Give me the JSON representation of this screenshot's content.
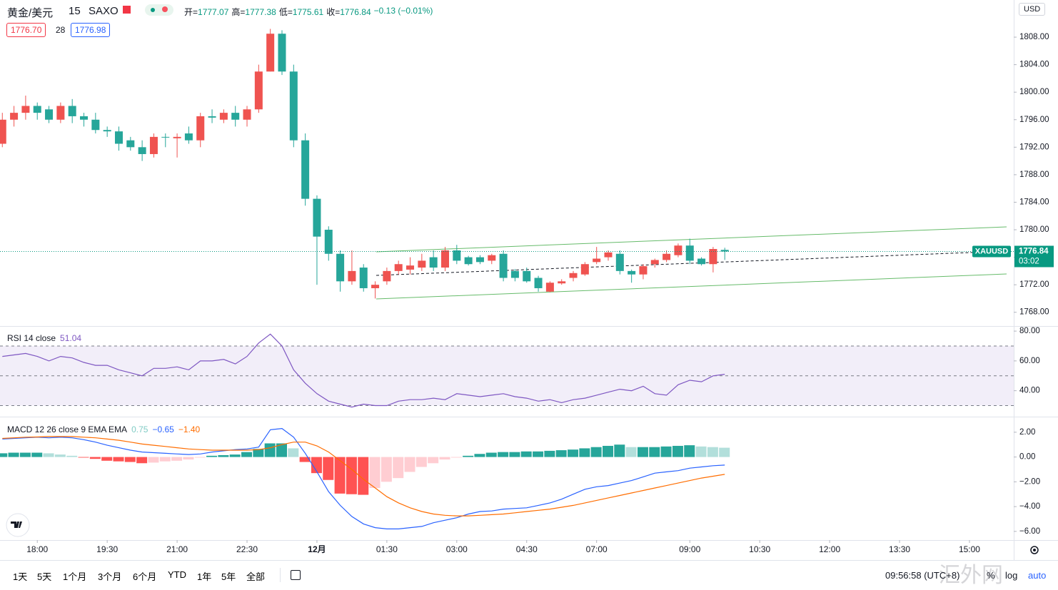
{
  "header": {
    "symbol": "黄金/美元",
    "interval": "15",
    "exchange": "SAXO",
    "ohlc": [
      {
        "label": "开=",
        "value": 1777.07
      },
      {
        "label": "高=",
        "value": 1777.38
      },
      {
        "label": "低=",
        "value": 1775.61
      },
      {
        "label": "收=",
        "value": 1776.84
      }
    ],
    "change": "−0.13 (−0.01%)",
    "bid": "1776.70",
    "spread": "28",
    "ask": "1776.98",
    "currency": "USD"
  },
  "chart_data": [
    {
      "type": "candlestick",
      "up_color": "#ef5350",
      "down_color": "#26a69a",
      "open": [
        1792.5,
        1796,
        1797,
        1798,
        1797.5,
        1796,
        1798,
        1796.5,
        1796,
        1794.5,
        1794.3,
        1793,
        1792,
        1791,
        1793.5,
        1793.3,
        1794,
        1793,
        1796.5,
        1796,
        1797,
        1796,
        1797.5,
        1803,
        1808.5,
        1803,
        1793,
        1784.5,
        1780,
        1776.5,
        1772.5,
        1774.5,
        1771.5,
        1772.5,
        1774,
        1774.2,
        1774.5,
        1776,
        1774.5,
        1777,
        1776,
        1776,
        1775.5,
        1776.5,
        1774,
        1774,
        1773,
        1771,
        1772.2,
        1773,
        1773.5,
        1775.3,
        1776,
        1776.5,
        1774,
        1773.5,
        1775,
        1775.6,
        1776.3,
        1777.7,
        1775.8,
        1775,
        1777.07
      ],
      "high": [
        1797,
        1798,
        1799.5,
        1798.5,
        1798,
        1798.5,
        1799,
        1797,
        1797,
        1795,
        1795,
        1793.5,
        1793,
        1794,
        1794,
        1794,
        1795,
        1797,
        1797.5,
        1797.5,
        1798,
        1798,
        1804,
        1809.2,
        1809,
        1804,
        1794,
        1785,
        1780.5,
        1777,
        1777,
        1775,
        1772.5,
        1774.5,
        1775.5,
        1776,
        1776.5,
        1777,
        1777.5,
        1777.8,
        1776.2,
        1776.3,
        1776.5,
        1777,
        1774.3,
        1774.5,
        1773.3,
        1772.5,
        1772.8,
        1774,
        1775.3,
        1777.5,
        1777,
        1777,
        1774.2,
        1775,
        1775.8,
        1777,
        1778,
        1778.7,
        1776,
        1777.5,
        1777.38
      ],
      "low": [
        1792,
        1795,
        1796,
        1796,
        1795.5,
        1795.5,
        1795.5,
        1795,
        1794,
        1793.5,
        1791.5,
        1791.5,
        1790,
        1790.5,
        1792,
        1790.5,
        1792.5,
        1792,
        1795.5,
        1795.5,
        1795,
        1795,
        1797,
        1803,
        1802.5,
        1792,
        1783.5,
        1772,
        1775.5,
        1771,
        1772,
        1771,
        1770,
        1772,
        1773.5,
        1773.5,
        1774,
        1774,
        1774,
        1775,
        1774.8,
        1775,
        1775,
        1772.5,
        1772.5,
        1772.3,
        1771,
        1770.9,
        1772,
        1772.5,
        1773.3,
        1775,
        1775.5,
        1773.5,
        1772.3,
        1772.8,
        1774.5,
        1775.3,
        1776,
        1775,
        1774.8,
        1773.8,
        1775.61
      ],
      "close": [
        1796,
        1797,
        1798,
        1797,
        1796,
        1798,
        1796.5,
        1796,
        1794.5,
        1794.3,
        1792.5,
        1792,
        1791,
        1793.5,
        1793.4,
        1793.5,
        1793,
        1796.5,
        1796.3,
        1797,
        1796,
        1797.5,
        1803,
        1808.5,
        1803,
        1793,
        1784.5,
        1779,
        1776.5,
        1772.5,
        1774,
        1771.5,
        1772,
        1774,
        1775,
        1774.8,
        1775.5,
        1774.5,
        1777,
        1775.5,
        1775,
        1775.3,
        1776.3,
        1773,
        1773,
        1772.5,
        1771.5,
        1772.3,
        1772.5,
        1773.7,
        1775,
        1775.8,
        1776.7,
        1774,
        1773.5,
        1774.7,
        1775.6,
        1776.5,
        1777.7,
        1775.5,
        1775,
        1777.2,
        1776.84
      ],
      "ylim": [
        1766.0,
        1813.4
      ],
      "yticks": [
        {
          "value": 1768,
          "label": "1768.00"
        },
        {
          "value": 1772,
          "label": "1772.00"
        },
        {
          "value": 1776,
          "label": "1776.00"
        },
        {
          "value": 1780,
          "label": "1780.00"
        },
        {
          "value": 1784,
          "label": "1784.00"
        },
        {
          "value": 1788,
          "label": "1788.00"
        },
        {
          "value": 1792,
          "label": "1792.00"
        },
        {
          "value": 1796,
          "label": "1796.00"
        },
        {
          "value": 1800,
          "label": "1800.00"
        },
        {
          "value": 1804,
          "label": "1804.00"
        },
        {
          "value": 1808,
          "label": "1808.00"
        }
      ],
      "xlim": [
        -0.2,
        86.8
      ],
      "xticks": [
        {
          "value": 3,
          "label": "18:00"
        },
        {
          "value": 9,
          "label": "19:30"
        },
        {
          "value": 15,
          "label": "21:00"
        },
        {
          "value": 21,
          "label": "22:30"
        },
        {
          "value": 27,
          "label": "12月"
        },
        {
          "value": 33,
          "label": "01:30"
        },
        {
          "value": 39,
          "label": "03:00"
        },
        {
          "value": 45,
          "label": "04:30"
        },
        {
          "value": 51,
          "label": "07:00"
        },
        {
          "value": 59,
          "label": "09:00"
        },
        {
          "value": 65,
          "label": "10:30"
        },
        {
          "value": 71,
          "label": "12:00"
        },
        {
          "value": 77,
          "label": "13:30"
        },
        {
          "value": 83,
          "label": "15:00"
        }
      ],
      "last_price": {
        "value": 1776.84,
        "symbol": "XAUUSD",
        "countdown": "03:02",
        "color": "#089981"
      }
    },
    {
      "type": "line",
      "title": "RSI 14 close",
      "readout": "51.04",
      "ylim": [
        22.6,
        83.4
      ],
      "yticks": [
        {
          "value": 40,
          "label": "40.00"
        },
        {
          "value": 60,
          "label": "60.00"
        },
        {
          "value": 80,
          "label": "80.00"
        }
      ],
      "band": [
        30,
        70
      ],
      "midline": 50,
      "series": [
        {
          "color": "#7e57c2",
          "values": [
            63,
            64,
            65,
            63,
            60,
            63,
            62,
            59,
            57,
            57,
            54,
            52,
            50,
            55,
            55,
            56,
            54,
            60,
            60,
            61,
            58,
            63,
            72,
            78,
            70,
            54,
            45,
            38,
            33,
            31,
            29,
            31,
            30,
            30,
            33,
            34,
            34,
            35,
            34,
            38,
            37,
            36,
            37,
            38,
            36,
            35,
            33,
            34,
            32,
            34,
            35,
            37,
            39,
            41,
            40,
            43,
            38,
            37,
            44,
            47,
            46,
            50,
            51.04
          ]
        }
      ]
    },
    {
      "type": "macd",
      "title": "MACD 12 26 close 9 EMA EMA",
      "ylim": [
        -6.7,
        3.2
      ],
      "yticks": [
        {
          "value": 2,
          "label": "2.00"
        },
        {
          "value": 0,
          "label": "0.00"
        },
        {
          "value": -2,
          "label": "−2.00"
        },
        {
          "value": -4,
          "label": "−4.00"
        },
        {
          "value": -6,
          "label": "−6.00"
        }
      ],
      "histogram": {
        "readout": "0.75",
        "colors": {
          "pos_up": "#26a69a",
          "pos_down": "#b2dfdb",
          "neg_down": "#ff5252",
          "neg_up": "#ffcdd2"
        },
        "values": [
          0.3,
          0.35,
          0.35,
          0.35,
          0.3,
          0.2,
          0.1,
          -0.05,
          -0.15,
          -0.3,
          -0.35,
          -0.4,
          -0.5,
          -0.45,
          -0.35,
          -0.3,
          -0.2,
          -0.05,
          0.1,
          0.15,
          0.2,
          0.4,
          0.65,
          1.1,
          1.1,
          0.7,
          -0.4,
          -1.3,
          -1.85,
          -2.95,
          -3.0,
          -3.05,
          -2.5,
          -2.0,
          -1.7,
          -1.2,
          -0.8,
          -0.5,
          -0.2,
          -0.05,
          0.1,
          0.25,
          0.35,
          0.4,
          0.4,
          0.45,
          0.45,
          0.5,
          0.55,
          0.6,
          0.7,
          0.8,
          0.9,
          1.0,
          0.8,
          0.8,
          0.8,
          0.85,
          0.9,
          0.95,
          0.85,
          0.8,
          0.75
        ]
      },
      "series": [
        {
          "readout": "−0.65",
          "color": "#2962ff",
          "values": [
            1.45,
            1.5,
            1.55,
            1.6,
            1.55,
            1.6,
            1.55,
            1.4,
            1.2,
            0.95,
            0.75,
            0.55,
            0.4,
            0.35,
            0.3,
            0.25,
            0.2,
            0.25,
            0.4,
            0.5,
            0.6,
            0.65,
            0.8,
            2.2,
            2.3,
            1.6,
            0.3,
            -1.2,
            -2.8,
            -3.9,
            -4.8,
            -5.4,
            -5.7,
            -5.8,
            -5.8,
            -5.7,
            -5.6,
            -5.3,
            -5.1,
            -4.9,
            -4.6,
            -4.4,
            -4.35,
            -4.2,
            -4.15,
            -4.1,
            -3.9,
            -3.7,
            -3.4,
            -3.0,
            -2.6,
            -2.4,
            -2.3,
            -2.1,
            -1.9,
            -1.6,
            -1.3,
            -1.2,
            -1.1,
            -0.9,
            -0.8,
            -0.7,
            -0.65
          ]
        },
        {
          "readout": "−1.40",
          "color": "#ff6d00",
          "values": [
            1.5,
            1.55,
            1.6,
            1.62,
            1.65,
            1.65,
            1.65,
            1.6,
            1.55,
            1.45,
            1.35,
            1.2,
            1.05,
            0.95,
            0.85,
            0.75,
            0.65,
            0.6,
            0.55,
            0.55,
            0.55,
            0.55,
            0.6,
            0.75,
            1.0,
            1.2,
            1.2,
            0.9,
            0.4,
            -0.3,
            -1.0,
            -1.8,
            -2.5,
            -3.2,
            -3.7,
            -4.1,
            -4.4,
            -4.6,
            -4.7,
            -4.75,
            -4.75,
            -4.7,
            -4.65,
            -4.6,
            -4.5,
            -4.4,
            -4.3,
            -4.2,
            -4.05,
            -3.9,
            -3.7,
            -3.5,
            -3.3,
            -3.1,
            -2.9,
            -2.7,
            -2.5,
            -2.3,
            -2.1,
            -1.9,
            -1.7,
            -1.55,
            -1.4
          ]
        }
      ]
    }
  ],
  "toolbar": {
    "ranges": [
      "1天",
      "5天",
      "1个月",
      "3个月",
      "6个月",
      "YTD",
      "1年",
      "5年",
      "全部"
    ],
    "time": "09:56:58 (UTC+8)",
    "percent": "%",
    "log": "log",
    "auto": "auto"
  },
  "watermark": "汇外网"
}
